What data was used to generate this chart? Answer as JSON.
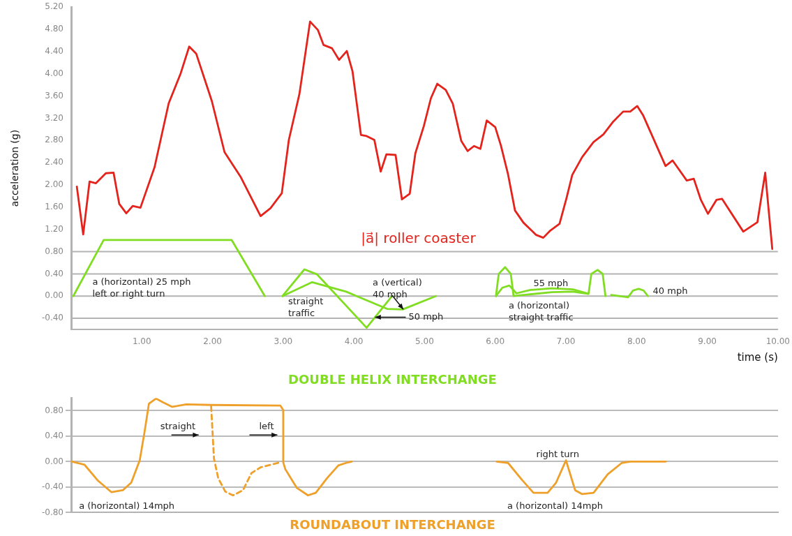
{
  "chart_data": [
    {
      "type": "line",
      "title": "DOUBLE HELIX INTERCHANGE",
      "xlabel": "time (s)",
      "ylabel": "acceleration (g)",
      "xlim": [
        0,
        10
      ],
      "ylim": [
        -0.6,
        5.2
      ],
      "xticks": [
        {
          "value": 1,
          "label": "1.00"
        },
        {
          "value": 2,
          "label": "2.00"
        },
        {
          "value": 3,
          "label": "3.00"
        },
        {
          "value": 4,
          "label": "4.00"
        },
        {
          "value": 5,
          "label": "5.00"
        },
        {
          "value": 6,
          "label": "6.00"
        },
        {
          "value": 7,
          "label": "7.00"
        },
        {
          "value": 8,
          "label": "8.00"
        },
        {
          "value": 9,
          "label": "9.00"
        },
        {
          "value": 10,
          "label": "10.00"
        }
      ],
      "yticks": [
        {
          "value": -0.4,
          "label": "-0.40"
        },
        {
          "value": 0,
          "label": "0.00"
        },
        {
          "value": 0.4,
          "label": "0.40"
        },
        {
          "value": 0.8,
          "label": "0.80"
        },
        {
          "value": 1.2,
          "label": "1.20"
        },
        {
          "value": 1.6,
          "label": "1.60"
        },
        {
          "value": 2,
          "label": "2.00"
        },
        {
          "value": 2.4,
          "label": "2.40"
        },
        {
          "value": 2.8,
          "label": "2.80"
        },
        {
          "value": 3.2,
          "label": "3.20"
        },
        {
          "value": 3.6,
          "label": "3.60"
        },
        {
          "value": 4,
          "label": "4.00"
        },
        {
          "value": 4.4,
          "label": "4.40"
        },
        {
          "value": 4.8,
          "label": "4.80"
        },
        {
          "value": 5.2,
          "label": "5.20"
        }
      ],
      "grid": false,
      "marker": "none",
      "line_style": "solid",
      "ref_lines": [
        {
          "axis": "y",
          "value": 0.8,
          "color": "#b3b3b3"
        },
        {
          "axis": "y",
          "value": 0.4,
          "color": "#b3b3b3"
        },
        {
          "axis": "y",
          "value": 0,
          "color": "#b3b3b3"
        },
        {
          "axis": "y",
          "value": -0.4,
          "color": "#b3b3b3"
        }
      ],
      "series": [
        {
          "name": "|a⃗| roller coaster",
          "color": "#e3231c",
          "x": [
            0.08,
            0.17,
            0.26,
            0.35,
            0.49,
            0.6,
            0.68,
            0.78,
            0.87,
            0.98,
            1.18,
            1.38,
            1.55,
            1.67,
            1.77,
            1.99,
            2.17,
            2.4,
            2.68,
            2.82,
            2.98,
            3.08,
            3.23,
            3.38,
            3.49,
            3.57,
            3.69,
            3.79,
            3.9,
            3.98,
            4.1,
            4.18,
            4.29,
            4.38,
            4.46,
            4.59,
            4.68,
            4.79,
            4.87,
            4.99,
            5.09,
            5.18,
            5.3,
            5.4,
            5.52,
            5.61,
            5.7,
            5.79,
            5.88,
            6,
            6.08,
            6.18,
            6.28,
            6.4,
            6.58,
            6.68,
            6.78,
            6.91,
            7.01,
            7.09,
            7.23,
            7.39,
            7.53,
            7.67,
            7.81,
            7.91,
            8.01,
            8.09,
            8.41,
            8.51,
            8.71,
            8.81,
            8.91,
            9.01,
            9.13,
            9.21,
            9.51,
            9.71,
            9.82,
            9.92
          ],
          "values": [
            1.97,
            1.11,
            2.06,
            2.03,
            2.21,
            2.22,
            1.66,
            1.49,
            1.62,
            1.59,
            2.32,
            3.47,
            4.01,
            4.49,
            4.36,
            3.51,
            2.59,
            2.14,
            1.44,
            1.58,
            1.85,
            2.81,
            3.64,
            4.94,
            4.79,
            4.52,
            4.46,
            4.25,
            4.41,
            4.05,
            2.9,
            2.88,
            2.81,
            2.24,
            2.55,
            2.54,
            1.74,
            1.84,
            2.57,
            3.06,
            3.56,
            3.82,
            3.71,
            3.46,
            2.79,
            2.61,
            2.7,
            2.65,
            3.16,
            3.04,
            2.71,
            2.2,
            1.54,
            1.32,
            1.1,
            1.05,
            1.18,
            1.3,
            1.77,
            2.18,
            2.5,
            2.77,
            2.91,
            3.14,
            3.32,
            3.32,
            3.42,
            3.26,
            2.34,
            2.44,
            2.08,
            2.11,
            1.73,
            1.48,
            1.73,
            1.75,
            1.16,
            1.33,
            2.22,
            0.85
          ]
        },
        {
          "color": "#80dd22",
          "x": [
            0.03,
            0.46,
            2.27,
            2.74
          ],
          "values": [
            0,
            1.01,
            1.01,
            0
          ]
        },
        {
          "color": "#80dd22",
          "x": [
            2.99,
            3.3,
            3.48,
            4.18,
            4.54
          ],
          "values": [
            0,
            0.48,
            0.39,
            -0.57,
            0
          ]
        },
        {
          "color": "#80dd22",
          "x": [
            2.99,
            3.41,
            3.89,
            4.47,
            4.69,
            5.16
          ],
          "values": [
            0,
            0.25,
            0.08,
            -0.23,
            -0.24,
            0
          ]
        },
        {
          "color": "#80dd22",
          "x": [
            6.01,
            6.05,
            6.14,
            6.22,
            6.26,
            6.4,
            6.8,
            7.1,
            7.32,
            7.36,
            7.45,
            7.52,
            7.56
          ],
          "values": [
            0,
            0.4,
            0.52,
            0.4,
            0,
            0.02,
            0.07,
            0.08,
            0.04,
            0.4,
            0.47,
            0.4,
            0
          ]
        },
        {
          "color": "#80dd22",
          "x": [
            6.01,
            6.1,
            6.2,
            6.3,
            6.5,
            6.8,
            7.1,
            7.3
          ],
          "values": [
            0,
            0.15,
            0.19,
            0.05,
            0.11,
            0.14,
            0.12,
            0.05
          ]
        },
        {
          "color": "#80dd22",
          "x": [
            7.64,
            7.88,
            7.95,
            8.03,
            8.1,
            8.16
          ],
          "values": [
            0.02,
            -0.02,
            0.1,
            0.13,
            0.1,
            0
          ]
        }
      ],
      "annotations": [
        "a (horizontal) 25 mph\nleft or right turn",
        "straight\ntraffic",
        {
          "text": "a (vertical)\n40 mph",
          "x": 4.7,
          "y": -0.24
        },
        {
          "text": "50 mph",
          "x": 4.3,
          "y": -0.38
        },
        "55 mph",
        "40 mph",
        "a (horizontal)\nstraight traffic"
      ]
    },
    {
      "type": "line",
      "title": "ROUNDABOUT INTERCHANGE",
      "xlim": [
        0,
        10
      ],
      "ylim": [
        -0.8,
        1.0
      ],
      "yticks": [
        {
          "value": -0.8,
          "label": "-0.80"
        },
        {
          "value": -0.4,
          "label": "-0.40"
        },
        {
          "value": 0,
          "label": "0.00"
        },
        {
          "value": 0.4,
          "label": "0.40"
        },
        {
          "value": 0.8,
          "label": "0.80"
        }
      ],
      "grid": "y",
      "tick_labels": "y",
      "marker": "none",
      "line_style": "solid",
      "series": [
        {
          "color": "#eea02a",
          "x": [
            0.01,
            0.19,
            0.38,
            0.57,
            0.73,
            0.85,
            0.97,
            1.04,
            1.1,
            1.2,
            1.3,
            1.43,
            1.63,
            1.98,
            2.96,
            3,
            3,
            3.03,
            3.19,
            3.35,
            3.46,
            3.62,
            3.78,
            3.89,
            3.97
          ],
          "values": [
            0,
            -0.05,
            -0.3,
            -0.48,
            -0.45,
            -0.33,
            0.02,
            0.48,
            0.91,
            0.99,
            0.93,
            0.86,
            0.9,
            0.89,
            0.88,
            0.81,
            -0.01,
            -0.12,
            -0.41,
            -0.53,
            -0.49,
            -0.26,
            -0.06,
            -0.02,
            0
          ]
        },
        {
          "color": "#eea02a",
          "line_style": "dashed",
          "x": [
            1.98,
            2.02,
            2.08,
            2.18,
            2.29,
            2.43,
            2.55,
            2.68,
            2.96
          ],
          "values": [
            0.87,
            0.05,
            -0.26,
            -0.47,
            -0.53,
            -0.45,
            -0.18,
            -0.09,
            -0.01
          ]
        },
        {
          "color": "#eea02a",
          "x": [
            6.02,
            6.18,
            6.38,
            6.54,
            6.74,
            6.86,
            7,
            7.13,
            7.23,
            7.39,
            7.59,
            7.79,
            7.91,
            8.41
          ],
          "values": [
            0,
            -0.02,
            -0.29,
            -0.49,
            -0.49,
            -0.33,
            0.02,
            -0.45,
            -0.51,
            -0.49,
            -0.2,
            -0.02,
            0,
            0
          ]
        }
      ],
      "annotations": [
        "straight",
        "left",
        "a (horizontal) 14mph",
        "right turn",
        "a (horizontal) 14mph"
      ]
    }
  ]
}
